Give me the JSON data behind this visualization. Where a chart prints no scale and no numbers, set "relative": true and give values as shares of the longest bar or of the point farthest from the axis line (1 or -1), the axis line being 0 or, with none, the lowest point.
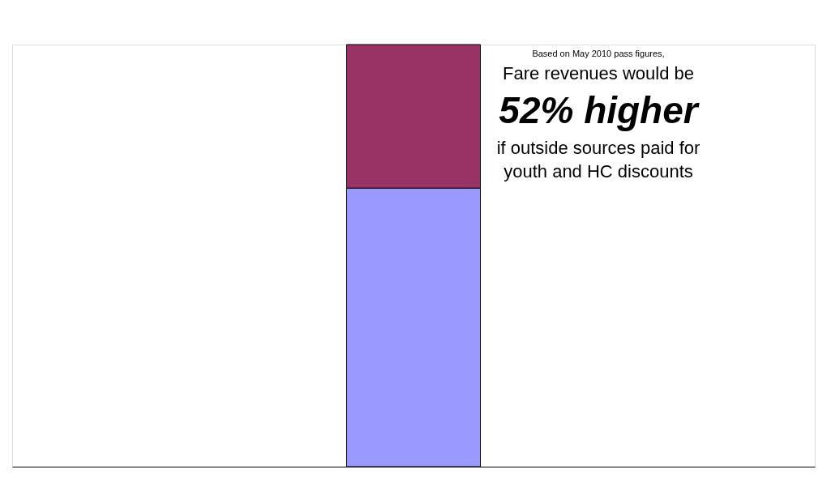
{
  "chart_data": {
    "type": "bar",
    "relative": true,
    "stacked": true,
    "categories": [
      null
    ],
    "tick_labels": false,
    "series": [
      {
        "color": "#9999ff",
        "values": [
          0.66
        ]
      },
      {
        "color": "#993366",
        "values": [
          0.34
        ]
      }
    ],
    "annotations": [
      "Based on May 2010 pass figures,",
      "Fare revenues would be",
      "52% higher",
      "if outside sources paid for",
      "youth and HC discounts"
    ]
  }
}
